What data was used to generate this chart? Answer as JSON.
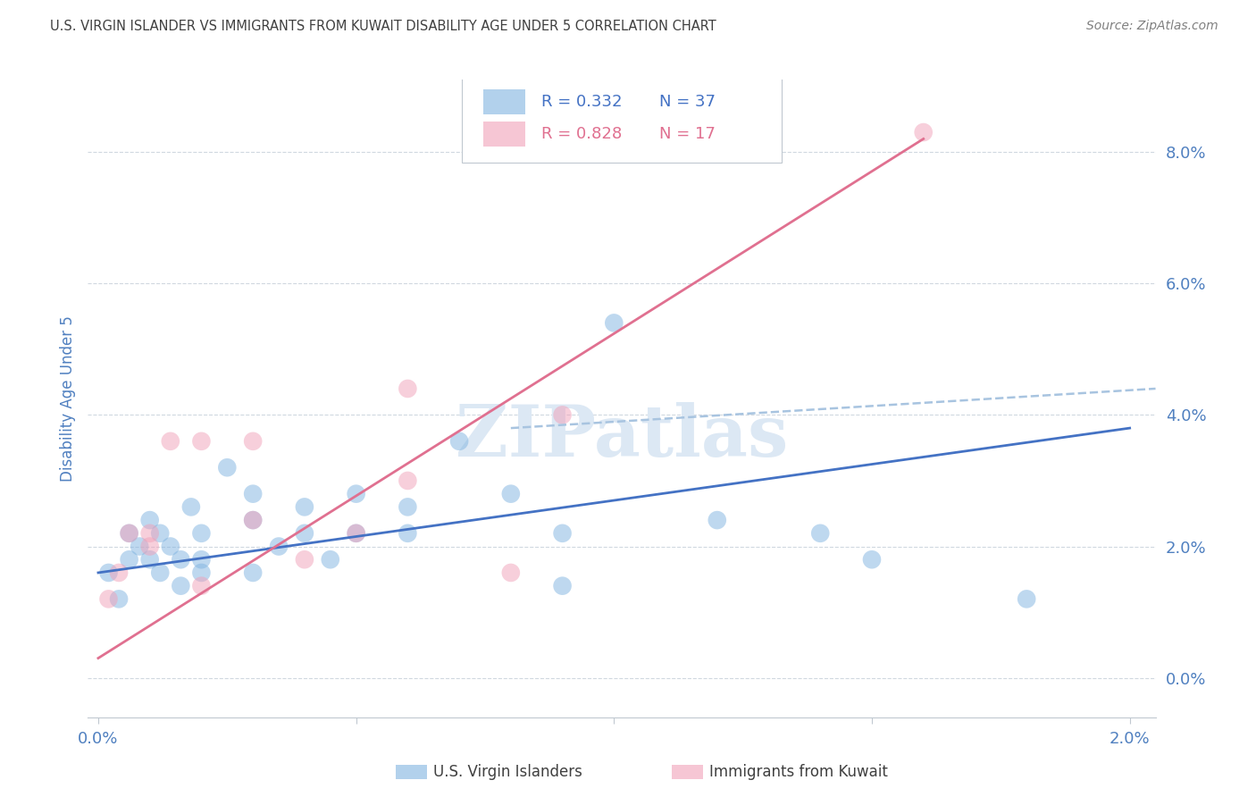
{
  "title": "U.S. VIRGIN ISLANDER VS IMMIGRANTS FROM KUWAIT DISABILITY AGE UNDER 5 CORRELATION CHART",
  "source": "Source: ZipAtlas.com",
  "ylabel": "Disability Age Under 5",
  "right_yticks": [
    0.0,
    0.02,
    0.04,
    0.06,
    0.08
  ],
  "right_yticklabels": [
    "0.0%",
    "2.0%",
    "4.0%",
    "6.0%",
    "8.0%"
  ],
  "xlim": [
    -0.0002,
    0.0205
  ],
  "ylim": [
    -0.006,
    0.091
  ],
  "legend_r1": "R = 0.332",
  "legend_n1": "N = 37",
  "legend_r2": "R = 0.828",
  "legend_n2": "N = 17",
  "blue_color": "#7fb3e0",
  "pink_color": "#f0a0b8",
  "line_blue": "#4472c4",
  "line_pink": "#e07090",
  "line_dashed_color": "#a8c4e0",
  "axis_label_color": "#5080c0",
  "title_color": "#404040",
  "source_color": "#808080",
  "watermark_color": "#dce8f4",
  "blue_scatter_x": [
    0.0002,
    0.0004,
    0.0006,
    0.0006,
    0.0008,
    0.001,
    0.001,
    0.0012,
    0.0012,
    0.0014,
    0.0016,
    0.0016,
    0.0018,
    0.002,
    0.002,
    0.002,
    0.0025,
    0.003,
    0.003,
    0.003,
    0.0035,
    0.004,
    0.004,
    0.0045,
    0.005,
    0.005,
    0.006,
    0.006,
    0.007,
    0.008,
    0.009,
    0.009,
    0.01,
    0.012,
    0.014,
    0.015,
    0.018
  ],
  "blue_scatter_y": [
    0.016,
    0.012,
    0.018,
    0.022,
    0.02,
    0.018,
    0.024,
    0.022,
    0.016,
    0.02,
    0.018,
    0.014,
    0.026,
    0.018,
    0.022,
    0.016,
    0.032,
    0.028,
    0.024,
    0.016,
    0.02,
    0.026,
    0.022,
    0.018,
    0.028,
    0.022,
    0.026,
    0.022,
    0.036,
    0.028,
    0.014,
    0.022,
    0.054,
    0.024,
    0.022,
    0.018,
    0.012
  ],
  "pink_scatter_x": [
    0.0002,
    0.0004,
    0.0006,
    0.001,
    0.001,
    0.0014,
    0.002,
    0.002,
    0.003,
    0.003,
    0.004,
    0.005,
    0.006,
    0.006,
    0.008,
    0.009,
    0.016
  ],
  "pink_scatter_y": [
    0.012,
    0.016,
    0.022,
    0.02,
    0.022,
    0.036,
    0.014,
    0.036,
    0.036,
    0.024,
    0.018,
    0.022,
    0.03,
    0.044,
    0.016,
    0.04,
    0.083
  ],
  "blue_line_x": [
    0.0,
    0.02
  ],
  "blue_line_y": [
    0.016,
    0.038
  ],
  "pink_line_x": [
    0.0,
    0.016
  ],
  "pink_line_y": [
    0.003,
    0.082
  ],
  "dashed_line_x": [
    0.008,
    0.0205
  ],
  "dashed_line_y": [
    0.038,
    0.044
  ],
  "grid_color": "#d0d8e0",
  "bottom_spine_color": "#c0c8d0"
}
